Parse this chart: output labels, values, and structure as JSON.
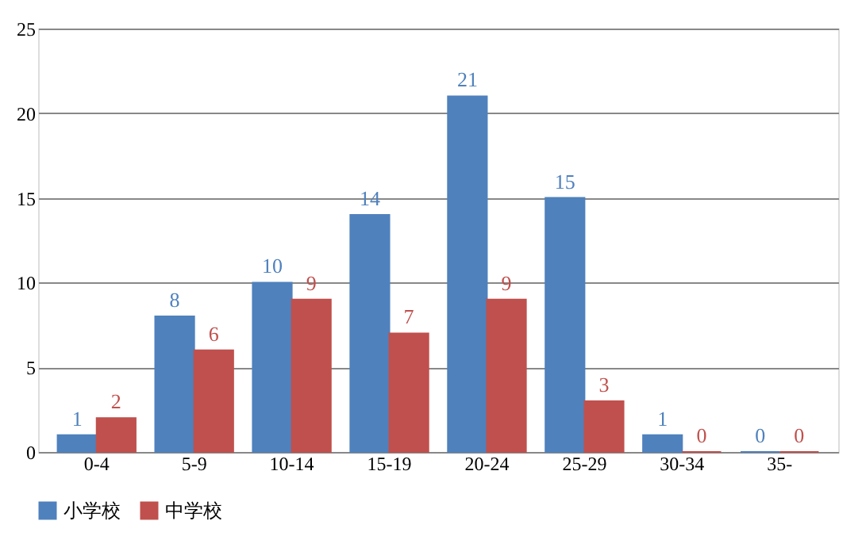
{
  "chart_data": {
    "type": "bar",
    "categories": [
      "0-4",
      "5-9",
      "10-14",
      "15-19",
      "20-24",
      "25-29",
      "30-34",
      "35-"
    ],
    "series": [
      {
        "name": "小学校",
        "color": "#4f81bd",
        "values": [
          1,
          8,
          10,
          14,
          21,
          15,
          1,
          0
        ]
      },
      {
        "name": "中学校",
        "color": "#c0504d",
        "values": [
          2,
          6,
          9,
          7,
          9,
          3,
          0,
          0
        ]
      }
    ],
    "ylim": [
      0,
      25
    ],
    "yticks": [
      0,
      5,
      10,
      15,
      20,
      25
    ],
    "grid": "y",
    "legend": "bottom",
    "data_labels": true
  }
}
